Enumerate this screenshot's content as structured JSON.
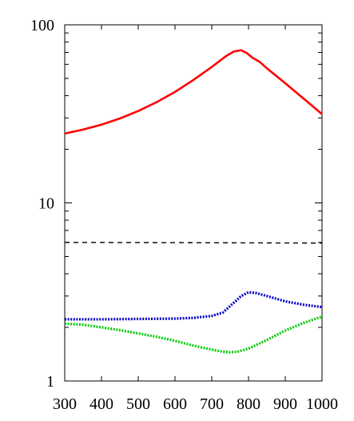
{
  "chart_data": {
    "type": "line",
    "title": "",
    "xlabel": "",
    "ylabel": "",
    "xlim": [
      300,
      1000
    ],
    "ylim": [
      1,
      100
    ],
    "yscale": "log",
    "grid": false,
    "legend": "none",
    "x_ticks": [
      300,
      400,
      500,
      600,
      700,
      800,
      900,
      1000
    ],
    "y_ticks": [
      1,
      10,
      100
    ],
    "series": [
      {
        "color": "#ff0000",
        "style": "solid",
        "points": [
          [
            300,
            24.5
          ],
          [
            350,
            25.8
          ],
          [
            400,
            27.5
          ],
          [
            450,
            29.8
          ],
          [
            500,
            32.8
          ],
          [
            550,
            36.8
          ],
          [
            600,
            42.0
          ],
          [
            650,
            49.0
          ],
          [
            700,
            58.0
          ],
          [
            740,
            67.0
          ],
          [
            760,
            70.8
          ],
          [
            780,
            72.0
          ],
          [
            795,
            69.5
          ],
          [
            810,
            65.5
          ],
          [
            830,
            62.0
          ],
          [
            850,
            57.0
          ],
          [
            900,
            47.0
          ],
          [
            950,
            38.5
          ],
          [
            1000,
            31.5
          ]
        ]
      },
      {
        "color": "#000000",
        "style": "dashed",
        "points": [
          [
            300,
            6.0
          ],
          [
            1000,
            5.95
          ]
        ]
      },
      {
        "color": "#0000cc",
        "style": "dotted",
        "points": [
          [
            300,
            2.22
          ],
          [
            400,
            2.22
          ],
          [
            500,
            2.23
          ],
          [
            600,
            2.24
          ],
          [
            650,
            2.26
          ],
          [
            700,
            2.32
          ],
          [
            730,
            2.42
          ],
          [
            760,
            2.75
          ],
          [
            780,
            3.0
          ],
          [
            800,
            3.15
          ],
          [
            820,
            3.12
          ],
          [
            850,
            3.0
          ],
          [
            900,
            2.8
          ],
          [
            950,
            2.68
          ],
          [
            1000,
            2.6
          ]
        ]
      },
      {
        "color": "#00cc00",
        "style": "dotted",
        "points": [
          [
            300,
            2.1
          ],
          [
            350,
            2.07
          ],
          [
            400,
            2.0
          ],
          [
            450,
            1.93
          ],
          [
            500,
            1.85
          ],
          [
            550,
            1.77
          ],
          [
            600,
            1.68
          ],
          [
            650,
            1.58
          ],
          [
            700,
            1.5
          ],
          [
            730,
            1.46
          ],
          [
            750,
            1.45
          ],
          [
            770,
            1.46
          ],
          [
            800,
            1.52
          ],
          [
            850,
            1.7
          ],
          [
            900,
            1.92
          ],
          [
            950,
            2.12
          ],
          [
            1000,
            2.3
          ]
        ]
      }
    ]
  }
}
